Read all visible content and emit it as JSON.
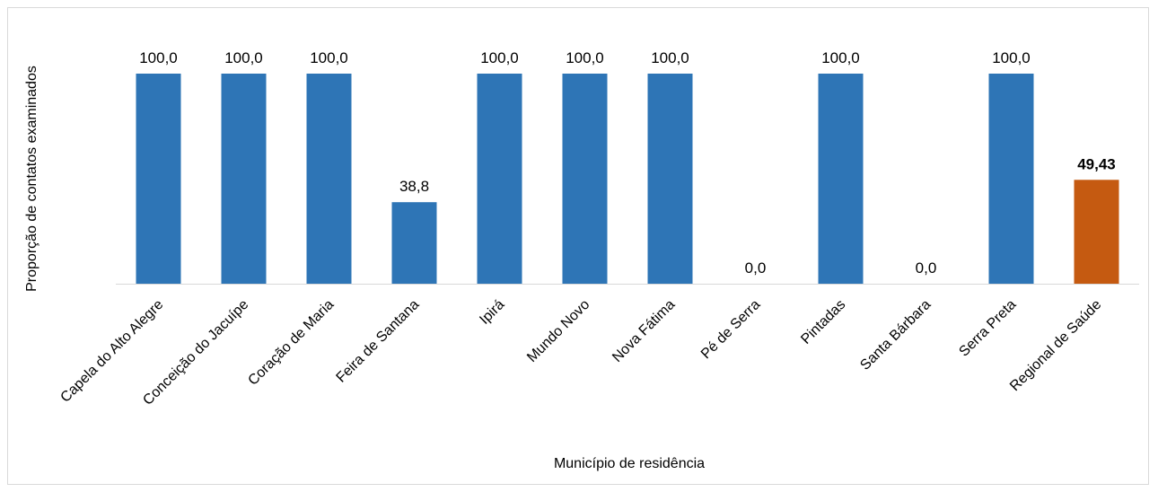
{
  "chart_data": {
    "type": "bar",
    "title": "",
    "xlabel": "Município de residência",
    "ylabel": "Proporção de contatos examinados",
    "ylim": [
      0,
      100
    ],
    "grid": false,
    "legend": "none",
    "categories": [
      "Capela do Alto Alegre",
      "Conceição do Jacuípe",
      "Coração de Maria",
      "Feira de Santana",
      "Ipirá",
      "Mundo Novo",
      "Nova Fátima",
      "Pé de Serra",
      "Pintadas",
      "Santa Bárbara",
      "Serra Preta",
      "Regional de Saúde"
    ],
    "values": [
      100.0,
      100.0,
      100.0,
      38.8,
      100.0,
      100.0,
      100.0,
      0.0,
      100.0,
      0.0,
      100.0,
      49.43
    ],
    "value_labels": [
      "100,0",
      "100,0",
      "100,0",
      "38,8",
      "100,0",
      "100,0",
      "100,0",
      "0,0",
      "100,0",
      "0,0",
      "100,0",
      "49,43"
    ],
    "highlight_index": 11,
    "colors": {
      "bar": "#2e75b6",
      "highlight": "#c55a11",
      "axis": "#d9d9d9"
    }
  }
}
